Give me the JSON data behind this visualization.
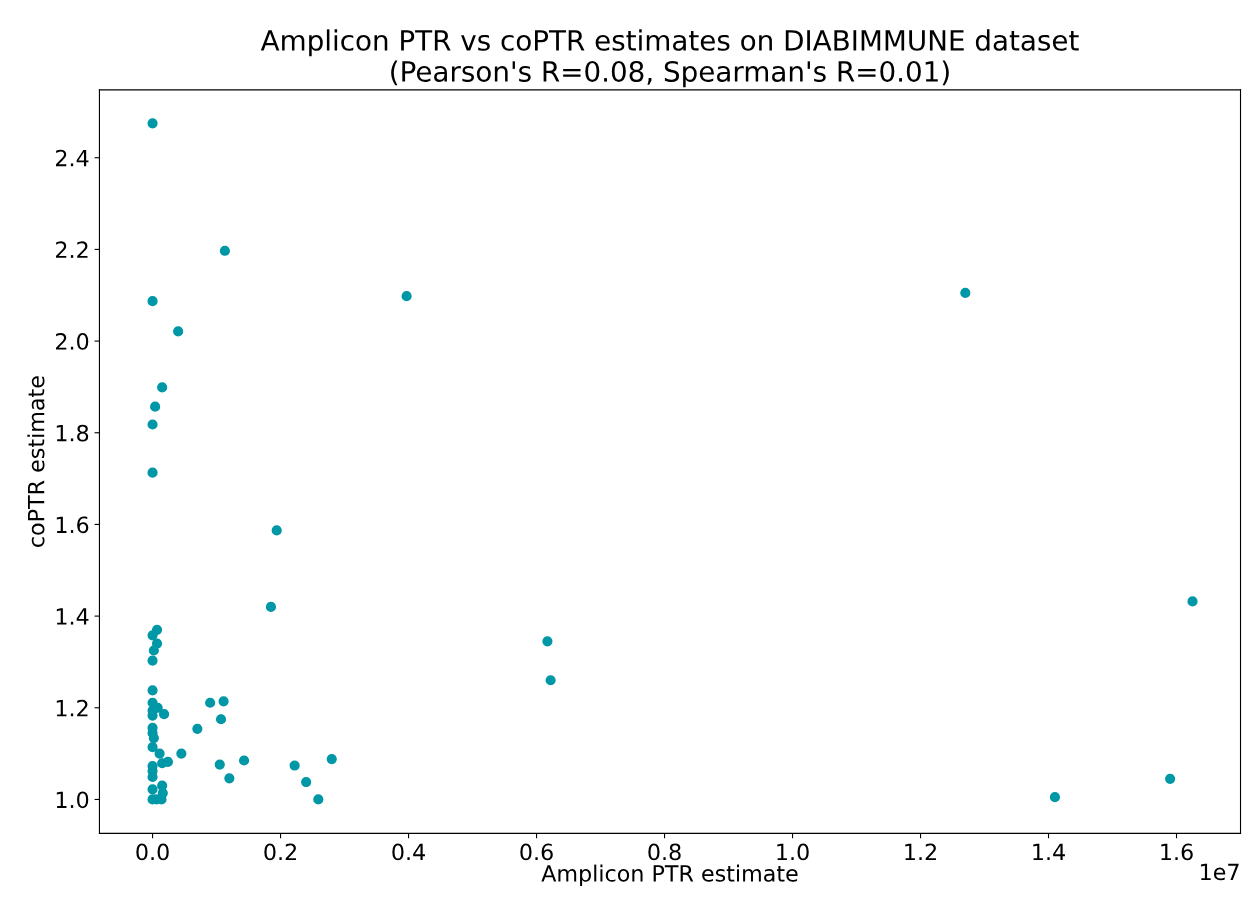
{
  "chart_data": {
    "type": "scatter",
    "title": "Amplicon PTR vs coPTR estimates on DIABIMMUNE dataset\n(Pearson's R=0.08, Spearman's R=0.01)",
    "xlabel": "Amplicon PTR estimate",
    "ylabel": "coPTR estimate",
    "annotations": [
      "1e7"
    ],
    "series": [
      {
        "color": "#0097a7",
        "x": [
          0.185,
          0.007,
          0,
          0.007,
          0.002,
          0,
          0,
          0,
          0.008,
          0,
          0,
          0.018,
          0.09,
          0.111,
          0.107,
          0.07,
          0,
          0,
          0.002,
          0,
          0.011,
          0.045,
          0.015,
          0.024,
          0,
          0,
          0,
          0.105,
          0.143,
          0.12,
          0.222,
          0.24,
          0.259,
          0.28,
          0,
          0.015,
          0.016,
          0,
          0.006,
          0.014,
          0,
          0.113,
          0,
          0.397,
          0.04,
          0.015,
          0.004,
          0,
          0,
          0.194,
          1.27,
          1.41,
          1.59,
          1.625,
          0.617,
          0.622
        ],
        "values": [
          1.42,
          1.37,
          1.358,
          1.34,
          1.325,
          1.303,
          1.238,
          1.211,
          1.2,
          1.194,
          1.183,
          1.186,
          1.211,
          1.214,
          1.175,
          1.154,
          1.156,
          1.145,
          1.134,
          1.114,
          1.1,
          1.1,
          1.079,
          1.082,
          1.073,
          1.062,
          1.049,
          1.076,
          1.085,
          1.046,
          1.074,
          1.038,
          1.0,
          1.088,
          1.022,
          1.03,
          1.014,
          1.0,
          1.0,
          1.0,
          2.475,
          2.197,
          2.087,
          2.098,
          2.021,
          1.899,
          1.857,
          1.818,
          1.713,
          1.587,
          2.105,
          1.005,
          1.045,
          1.432,
          1.345,
          1.26
        ]
      }
    ],
    "xlim": [
      -0.083,
      1.7
    ],
    "xticks": [
      {
        "value": 0,
        "label": "0.0"
      },
      0.2,
      0.4,
      0.6,
      0.8,
      {
        "value": 1,
        "label": "1.0"
      },
      1.2,
      1.4,
      1.6
    ],
    "ylim": [
      0.926,
      2.548
    ],
    "yticks": [
      {
        "value": 1,
        "label": "1.0"
      },
      1.2,
      1.4,
      1.6,
      1.8,
      {
        "value": 2,
        "label": "2.0"
      },
      2.2,
      2.4
    ],
    "grid": false,
    "marker": "circle"
  }
}
